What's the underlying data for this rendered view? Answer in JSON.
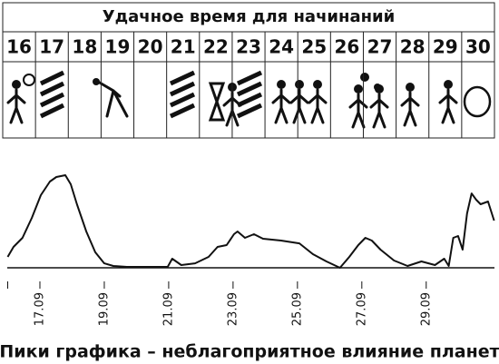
{
  "header": {
    "title": "Удачное время для начинаний",
    "days": [
      "16",
      "17",
      "18",
      "19",
      "20",
      "21",
      "22",
      "23",
      "24",
      "25",
      "26",
      "27",
      "28",
      "29",
      "30"
    ]
  },
  "chart_data": {
    "type": "line",
    "x": [
      16.0,
      16.18,
      16.46,
      16.75,
      17.03,
      17.31,
      17.51,
      17.79,
      17.96,
      18.15,
      18.44,
      18.72,
      19.0,
      19.28,
      19.7,
      20.97,
      21.11,
      21.39,
      21.82,
      22.24,
      22.52,
      22.8,
      23.03,
      23.14,
      23.37,
      23.65,
      23.93,
      24.49,
      25.06,
      25.48,
      25.9,
      26.32,
      26.61,
      26.89,
      27.11,
      27.31,
      27.58,
      28.0,
      28.42,
      28.85,
      29.27,
      29.56,
      29.7,
      29.84,
      29.99,
      30.13,
      30.27,
      30.41,
      30.55,
      30.69,
      30.92,
      31.11
    ],
    "series": [
      {
        "color": "#111111",
        "values": [
          10.9,
          20.9,
          30,
          50,
          72.7,
          86.4,
          90.9,
          92.7,
          83.6,
          63.6,
          36.4,
          15.5,
          4.5,
          1.8,
          0.9,
          0.9,
          9.1,
          2.7,
          4.5,
          10.9,
          20.9,
          22.7,
          33.6,
          36.4,
          30,
          33.6,
          29.1,
          27.3,
          24.5,
          13.6,
          6.4,
          0,
          10.9,
          22.7,
          30,
          27.3,
          18.2,
          7.3,
          1.8,
          6.4,
          2.7,
          9.1,
          1.8,
          30,
          31.8,
          18.2,
          54.5,
          74.5,
          68.2,
          63.6,
          66.4,
          47.3
        ]
      }
    ],
    "xlim": [
      16,
      31.12
    ],
    "ylim": [
      0,
      100
    ],
    "xticks": [
      {
        "value": 16,
        "label": ""
      },
      {
        "value": 17,
        "label": "17.09"
      },
      {
        "value": 19,
        "label": "19.09"
      },
      {
        "value": 21,
        "label": "21.09"
      },
      {
        "value": 23,
        "label": "23.09"
      },
      {
        "value": 25,
        "label": "25.09"
      },
      {
        "value": 27,
        "label": "27.09"
      },
      {
        "value": 29,
        "label": "29.09"
      }
    ],
    "caption": "Пики графика – неблагоприятное влияние планет"
  }
}
